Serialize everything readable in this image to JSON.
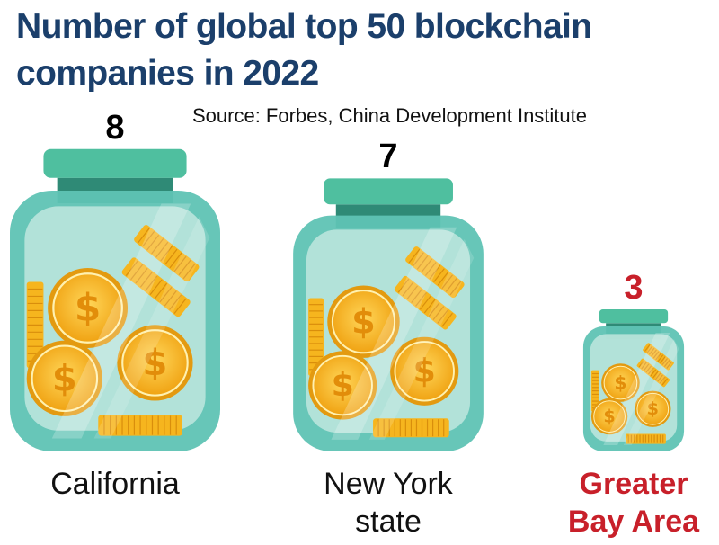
{
  "title": "Number of global top 50 blockchain companies in 2022",
  "source": "Source: Forbes, China Development Institute",
  "colors": {
    "title": "#1b3f6b",
    "highlight": "#c8202a",
    "text": "#111111",
    "jar_lid": "#4fbf9f",
    "jar_neck": "#2f8a76",
    "jar_body": "#5fc3b4",
    "coin": "#f6b51e"
  },
  "chart_data": {
    "type": "pictograph",
    "categories": [
      "California",
      "New York state",
      "Greater Bay Area"
    ],
    "values": [
      8,
      7,
      3
    ],
    "highlight": "Greater Bay Area"
  }
}
